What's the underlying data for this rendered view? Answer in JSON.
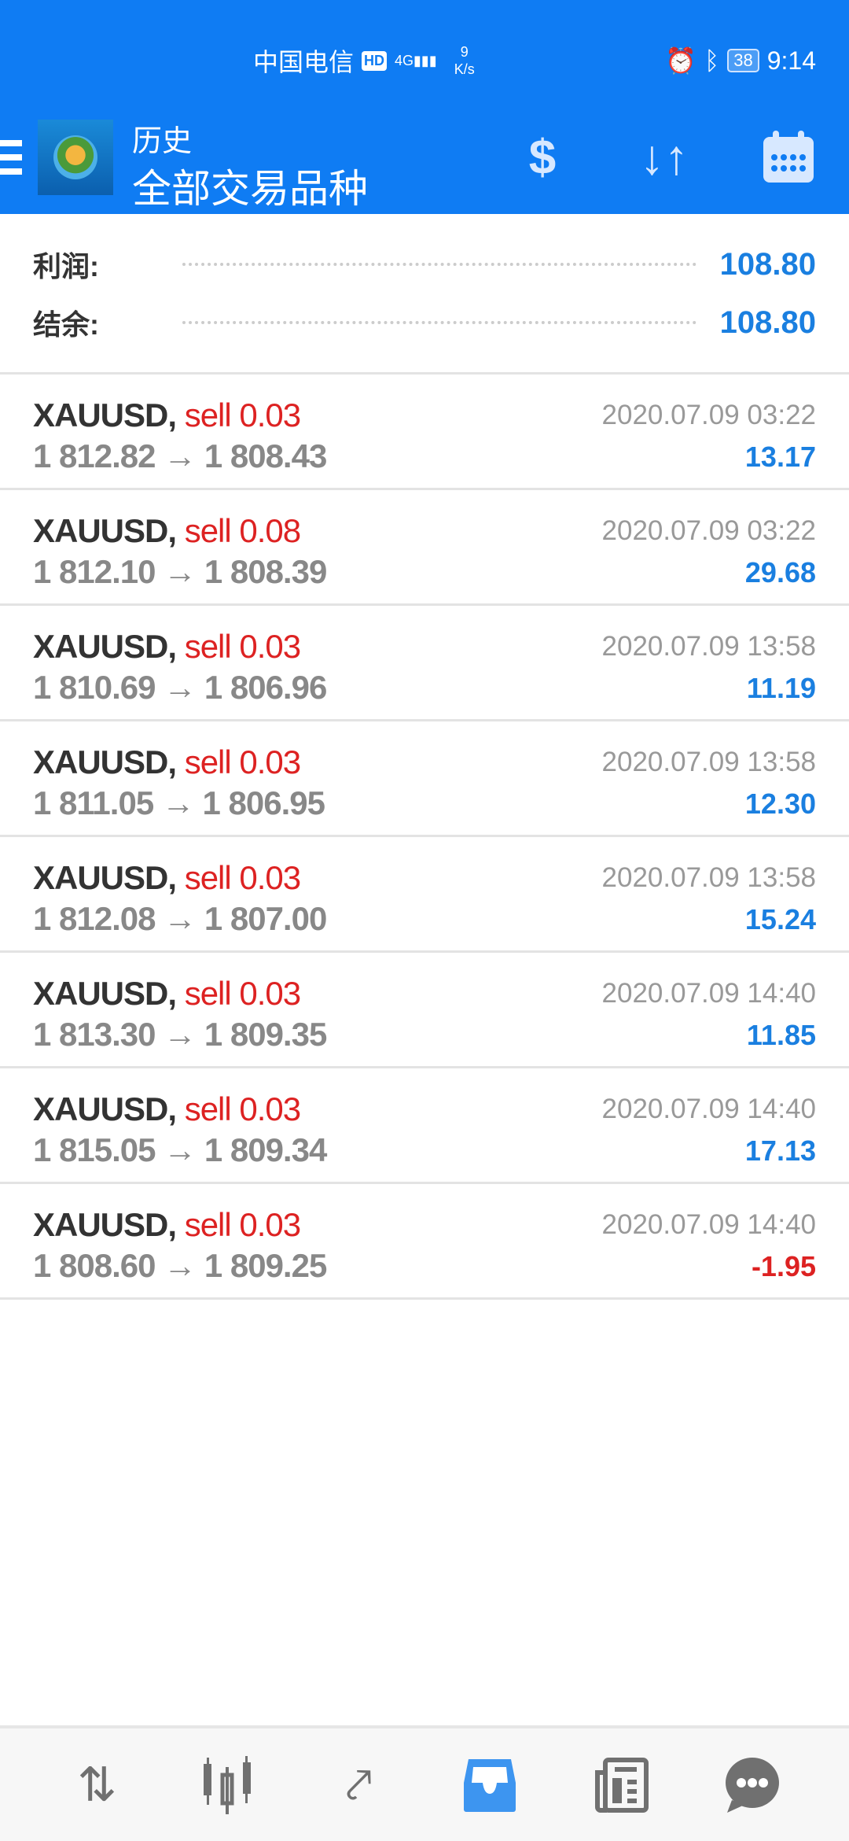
{
  "status_bar": {
    "carrier": "中国电信",
    "hd": "HD",
    "network": "4G",
    "speed_value": "9",
    "speed_unit": "K/s",
    "battery": "38",
    "time": "9:14"
  },
  "header": {
    "title": "历史",
    "subtitle": "全部交易品种",
    "icons": [
      "menu-icon",
      "app-logo",
      "deposit-withdraw-icon",
      "sort-icon",
      "calendar-icon"
    ]
  },
  "summary": {
    "profit_label": "利润:",
    "profit_value": "108.80",
    "balance_label": "结余:",
    "balance_value": "108.80"
  },
  "deals": [
    {
      "symbol": "XAUUSD,",
      "side": "sell 0.03",
      "prices": "1 812.82 → 1 808.43",
      "time": "2020.07.09 03:22",
      "profit": "13.17"
    },
    {
      "symbol": "XAUUSD,",
      "side": "sell 0.08",
      "prices": "1 812.10 → 1 808.39",
      "time": "2020.07.09 03:22",
      "profit": "29.68"
    },
    {
      "symbol": "XAUUSD,",
      "side": "sell 0.03",
      "prices": "1 810.69 → 1 806.96",
      "time": "2020.07.09 13:58",
      "profit": "11.19"
    },
    {
      "symbol": "XAUUSD,",
      "side": "sell 0.03",
      "prices": "1 811.05 → 1 806.95",
      "time": "2020.07.09 13:58",
      "profit": "12.30"
    },
    {
      "symbol": "XAUUSD,",
      "side": "sell 0.03",
      "prices": "1 812.08 → 1 807.00",
      "time": "2020.07.09 13:58",
      "profit": "15.24"
    },
    {
      "symbol": "XAUUSD,",
      "side": "sell 0.03",
      "prices": "1 813.30 → 1 809.35",
      "time": "2020.07.09 14:40",
      "profit": "11.85"
    },
    {
      "symbol": "XAUUSD,",
      "side": "sell 0.03",
      "prices": "1 815.05 → 1 809.34",
      "time": "2020.07.09 14:40",
      "profit": "17.13"
    },
    {
      "symbol": "XAUUSD,",
      "side": "sell 0.03",
      "prices": "1 808.60 → 1 809.25",
      "time": "2020.07.09 14:40",
      "profit": "-1.95"
    }
  ],
  "colors": {
    "brand": "#0f7cf3",
    "profit_positive": "#1a7fe0",
    "profit_negative": "#dd2222",
    "sell": "#dd2222",
    "nav_active": "#3d95f0"
  },
  "bottom_nav": {
    "items": [
      "quotes-icon",
      "chart-icon",
      "trade-icon",
      "history-icon",
      "news-icon",
      "chat-icon"
    ],
    "active": "history-icon"
  }
}
